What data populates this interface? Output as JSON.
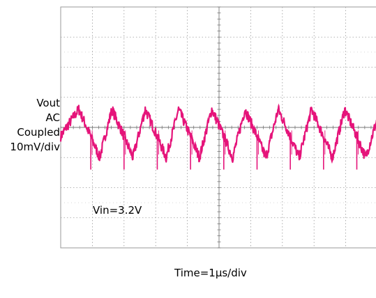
{
  "chart_data": {
    "type": "line",
    "title": "",
    "ylabel_lines": [
      "Vout",
      "AC",
      "Coupled",
      "10mV/div"
    ],
    "xlabel": "Time=1µs/div",
    "annotation": "Vin=3.2V",
    "grid": true,
    "x_divisions": 10,
    "y_divisions": 8,
    "x_unit": "µs",
    "xlim": [
      0,
      10
    ],
    "y_unit": "mV",
    "ylim": [
      -40,
      40
    ],
    "trace_color": "#E5147A",
    "series": [
      {
        "ripple_period_us": 1.05,
        "x": [
          0,
          0.18,
          0.57,
          0.95,
          1.23,
          1.62,
          2.0,
          2.28,
          2.67,
          3.05,
          3.33,
          3.72,
          4.1,
          4.38,
          4.77,
          5.15,
          5.43,
          5.82,
          6.2,
          6.48,
          6.87,
          7.25,
          7.53,
          7.92,
          8.3,
          8.58,
          8.97,
          9.35,
          9.63,
          10.0
        ],
        "y": [
          -3,
          0,
          6,
          -3,
          -10,
          6,
          -3,
          -10,
          6,
          -3,
          -10,
          6,
          -3,
          -10,
          6,
          -3,
          -10,
          6,
          -3,
          -10,
          6,
          -3,
          -10,
          6,
          -3,
          -10,
          6,
          -3,
          -10,
          3
        ],
        "spike_times_us": [
          0.95,
          2.0,
          3.05,
          4.1,
          5.15,
          6.2,
          7.25,
          8.3,
          9.35
        ],
        "spike_depth_mV": -14
      }
    ]
  }
}
